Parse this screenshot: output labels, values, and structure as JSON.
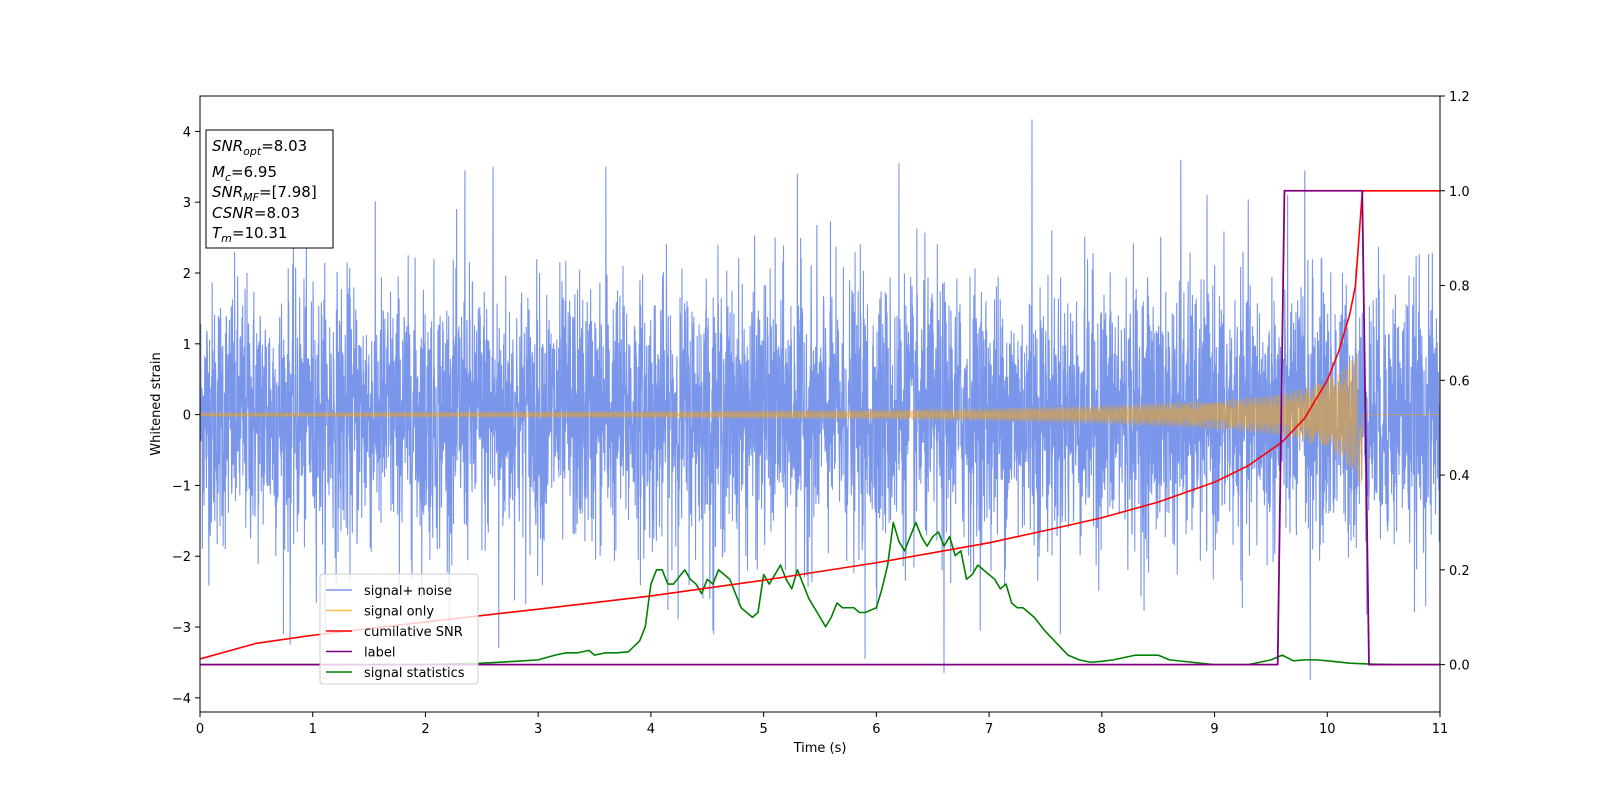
{
  "chart_data": {
    "type": "line",
    "xlabel": "Time (s)",
    "ylabel_left": "Whitened strain",
    "ylabel_right": "",
    "xlim": [
      0,
      11
    ],
    "ylim_left": [
      -4.2,
      4.5
    ],
    "ylim_right": [
      -0.1,
      1.2
    ],
    "x_ticks": [
      0,
      1,
      2,
      3,
      4,
      5,
      6,
      7,
      8,
      9,
      10,
      11
    ],
    "x_tick_labels": [
      "0",
      "1",
      "2",
      "3",
      "4",
      "5",
      "6",
      "7",
      "8",
      "9",
      "10",
      "11"
    ],
    "y_left_ticks": [
      -4,
      -3,
      -2,
      -1,
      0,
      1,
      2,
      3,
      4
    ],
    "y_left_tick_labels": [
      "−4",
      "−3",
      "−2",
      "−1",
      "0",
      "1",
      "2",
      "3",
      "4"
    ],
    "y_right_ticks": [
      0.0,
      0.2,
      0.4,
      0.6,
      0.8,
      1.0,
      1.2
    ],
    "y_right_tick_labels": [
      "0.0",
      "0.2",
      "0.4",
      "0.6",
      "0.8",
      "1.0",
      "1.2"
    ],
    "info_box": {
      "snr_opt": {
        "base": "SNR",
        "sub": "opt",
        "value": "=8.03"
      },
      "mc": {
        "base": "M",
        "sub": "c",
        "value": "=6.95"
      },
      "snr_mf": {
        "base": "SNR",
        "sub": "MF",
        "value": "=[7.98]"
      },
      "csnr": {
        "base": "CSNR",
        "value": "=8.03"
      },
      "tm": {
        "base": "T",
        "sub": "m",
        "value": "=10.31"
      }
    },
    "legend": [
      {
        "name": "signal+ noise",
        "color": "#4169e1"
      },
      {
        "name": "signal only",
        "color": "#ffa500"
      },
      {
        "name": "cumilative SNR",
        "color": "#ff0000"
      },
      {
        "name": "label",
        "color": "#800080"
      },
      {
        "name": "signal statistics",
        "color": "#008000"
      }
    ],
    "series": [
      {
        "name": "signal+ noise",
        "axis": "left",
        "color": "#4169e1",
        "description_type": "noise",
        "noise_sigma": 1.0,
        "x_range": [
          0,
          11
        ],
        "peak_values": [
          [
            2.35,
            3.45
          ],
          [
            2.6,
            3.5
          ],
          [
            3.6,
            3.5
          ],
          [
            5.3,
            3.4
          ],
          [
            6.2,
            3.55
          ],
          [
            7.38,
            4.17
          ],
          [
            8.7,
            3.6
          ],
          [
            9.8,
            3.45
          ],
          [
            0.8,
            -3.25
          ],
          [
            2.65,
            -3.3
          ],
          [
            4.55,
            -3.05
          ],
          [
            6.6,
            -3.65
          ],
          [
            9.85,
            -3.75
          ],
          [
            5.9,
            -3.45
          ]
        ]
      },
      {
        "name": "signal only",
        "axis": "left",
        "color": "#ffa500",
        "description_type": "chirp",
        "merger_time": 10.31,
        "envelope": [
          [
            0,
            0.03
          ],
          [
            2,
            0.04
          ],
          [
            4,
            0.05
          ],
          [
            6,
            0.07
          ],
          [
            7,
            0.09
          ],
          [
            8,
            0.13
          ],
          [
            9,
            0.2
          ],
          [
            9.5,
            0.28
          ],
          [
            9.8,
            0.38
          ],
          [
            10.0,
            0.5
          ],
          [
            10.15,
            0.65
          ],
          [
            10.25,
            0.85
          ],
          [
            10.31,
            1.1
          ]
        ]
      },
      {
        "name": "cumilative SNR",
        "axis": "right",
        "color": "#ff0000",
        "x": [
          0,
          0.5,
          1,
          2,
          3,
          4,
          5,
          6,
          7,
          7.5,
          8,
          8.5,
          9,
          9.3,
          9.6,
          9.8,
          10,
          10.1,
          10.2,
          10.25,
          10.31,
          10.32,
          11
        ],
        "values": [
          0.012,
          0.045,
          0.062,
          0.09,
          0.117,
          0.145,
          0.178,
          0.215,
          0.257,
          0.283,
          0.31,
          0.343,
          0.385,
          0.42,
          0.47,
          0.52,
          0.6,
          0.66,
          0.74,
          0.8,
          0.995,
          1.0,
          1.0
        ]
      },
      {
        "name": "label",
        "axis": "right",
        "color": "#800080",
        "x": [
          0,
          9.56,
          9.62,
          10.31,
          10.37,
          11
        ],
        "values": [
          0,
          0,
          1,
          1,
          0,
          0
        ]
      },
      {
        "name": "signal statistics",
        "axis": "right",
        "color": "#008000",
        "x": [
          0,
          0.5,
          1,
          1.5,
          2,
          2.5,
          2.8,
          3.0,
          3.15,
          3.25,
          3.35,
          3.45,
          3.5,
          3.6,
          3.7,
          3.8,
          3.9,
          3.95,
          4.0,
          4.05,
          4.1,
          4.15,
          4.2,
          4.3,
          4.35,
          4.4,
          4.45,
          4.5,
          4.55,
          4.6,
          4.65,
          4.7,
          4.8,
          4.9,
          4.95,
          5.0,
          5.05,
          5.1,
          5.15,
          5.2,
          5.25,
          5.3,
          5.35,
          5.4,
          5.45,
          5.5,
          5.55,
          5.6,
          5.65,
          5.7,
          5.8,
          5.85,
          5.9,
          6.0,
          6.05,
          6.1,
          6.15,
          6.2,
          6.25,
          6.3,
          6.35,
          6.4,
          6.45,
          6.5,
          6.55,
          6.6,
          6.65,
          6.7,
          6.75,
          6.8,
          6.85,
          6.9,
          6.95,
          7.0,
          7.05,
          7.1,
          7.15,
          7.2,
          7.25,
          7.3,
          7.35,
          7.4,
          7.5,
          7.6,
          7.7,
          7.8,
          7.9,
          8.0,
          8.1,
          8.2,
          8.3,
          8.4,
          8.5,
          8.6,
          8.8,
          9.0,
          9.2,
          9.3,
          9.4,
          9.5,
          9.6,
          9.7,
          9.8,
          9.9,
          10.0,
          10.2,
          10.4,
          10.6,
          10.8,
          11.0
        ],
        "values": [
          0.0,
          0.0,
          0.0,
          0.0,
          0.0,
          0.003,
          0.007,
          0.01,
          0.02,
          0.025,
          0.025,
          0.03,
          0.02,
          0.025,
          0.025,
          0.027,
          0.05,
          0.08,
          0.17,
          0.2,
          0.2,
          0.17,
          0.17,
          0.2,
          0.18,
          0.17,
          0.15,
          0.18,
          0.17,
          0.2,
          0.19,
          0.18,
          0.12,
          0.1,
          0.11,
          0.19,
          0.17,
          0.19,
          0.21,
          0.18,
          0.16,
          0.2,
          0.17,
          0.14,
          0.12,
          0.1,
          0.08,
          0.1,
          0.13,
          0.12,
          0.12,
          0.11,
          0.11,
          0.12,
          0.16,
          0.21,
          0.3,
          0.26,
          0.24,
          0.27,
          0.3,
          0.27,
          0.25,
          0.27,
          0.28,
          0.25,
          0.27,
          0.23,
          0.24,
          0.18,
          0.19,
          0.21,
          0.2,
          0.19,
          0.18,
          0.16,
          0.17,
          0.13,
          0.12,
          0.12,
          0.11,
          0.1,
          0.07,
          0.045,
          0.02,
          0.01,
          0.005,
          0.007,
          0.01,
          0.015,
          0.02,
          0.02,
          0.02,
          0.01,
          0.005,
          0.0,
          0.0,
          0.0,
          0.005,
          0.01,
          0.02,
          0.008,
          0.01,
          0.01,
          0.008,
          0.003,
          0.001,
          0.0,
          0.0,
          0.0
        ]
      }
    ],
    "grid": false,
    "legend_position": "lower-left"
  }
}
